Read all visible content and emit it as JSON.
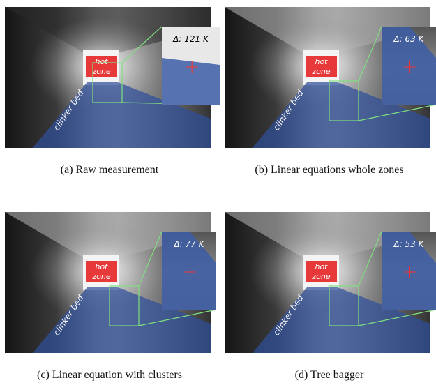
{
  "panels": [
    {
      "hot_zone": [
        "hot",
        "zone"
      ],
      "bed_label": "clinker bed",
      "delta": "Δ: 121 K",
      "caption": "(a) Raw measurement"
    },
    {
      "hot_zone": [
        "hot",
        "zone"
      ],
      "bed_label": "clinker bed",
      "delta": "Δ: 63 K",
      "caption": "(b) Linear equations whole zones"
    },
    {
      "hot_zone": [
        "hot",
        "zone"
      ],
      "bed_label": "clinker bed",
      "delta": "Δ: 77 K",
      "caption": "(c) Linear equation with clusters"
    },
    {
      "hot_zone": [
        "hot",
        "zone"
      ],
      "bed_label": "clinker bed",
      "delta": "Δ: 53 K",
      "caption": "(d) Tree bagger"
    }
  ]
}
